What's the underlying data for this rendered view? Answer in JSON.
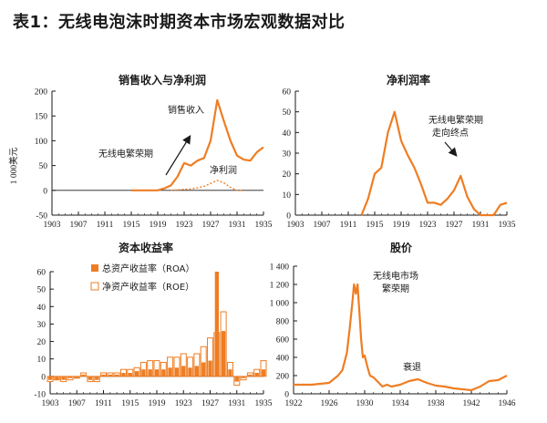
{
  "page": {
    "title": "表1：无线电泡沫时期资本市场宏观数据对比"
  },
  "colors": {
    "orange": "#ee7d23",
    "axis": "#1a1a1a"
  },
  "chart_data": [
    {
      "id": "sales",
      "type": "line",
      "title": "销售收入与净利润",
      "ylabel": "1 000美元",
      "xlim": [
        1903,
        1935
      ],
      "ylim": [
        -50,
        200
      ],
      "xticks": [
        1903,
        1907,
        1911,
        1915,
        1919,
        1923,
        1927,
        1931,
        1935
      ],
      "yticks": [
        -50,
        0,
        50,
        100,
        150,
        200
      ],
      "series": [
        {
          "name": "销售收入",
          "style": "solid",
          "x": [
            1915,
            1919,
            1920,
            1921,
            1922,
            1923,
            1924,
            1925,
            1926,
            1927,
            1928,
            1929,
            1930,
            1931,
            1932,
            1933,
            1934,
            1935
          ],
          "y": [
            0,
            0,
            4,
            10,
            28,
            55,
            50,
            60,
            65,
            100,
            182,
            140,
            100,
            70,
            62,
            60,
            77,
            87
          ]
        },
        {
          "name": "净利润",
          "style": "dotted",
          "x": [
            1921,
            1922,
            1923,
            1924,
            1925,
            1926,
            1927,
            1928,
            1929,
            1930,
            1931,
            1932
          ],
          "y": [
            0,
            1,
            2,
            3,
            5,
            8,
            14,
            20,
            15,
            6,
            0,
            0
          ]
        }
      ],
      "annotations": [
        "销售收入",
        "无线电繁荣期",
        "净利润"
      ]
    },
    {
      "id": "margin",
      "type": "line",
      "title": "净利润率",
      "xlim": [
        1903,
        1935
      ],
      "ylim": [
        0,
        60
      ],
      "xticks": [
        1903,
        1907,
        1911,
        1915,
        1919,
        1923,
        1927,
        1931,
        1935
      ],
      "yticks": [
        0,
        10,
        20,
        30,
        40,
        50,
        60
      ],
      "series": [
        {
          "name": "净利润率",
          "x": [
            1913,
            1914,
            1915,
            1916,
            1917,
            1918,
            1919,
            1920,
            1921,
            1922,
            1923,
            1924,
            1925,
            1926,
            1927,
            1928,
            1929,
            1930,
            1931,
            1932,
            1933,
            1934,
            1935
          ],
          "y": [
            0,
            8,
            20,
            23,
            40,
            50,
            36,
            29,
            23,
            15,
            6,
            6,
            5,
            8,
            12,
            19,
            9,
            3,
            0,
            0,
            0,
            5,
            6
          ]
        }
      ],
      "annotations": [
        "无线电繁荣期",
        "走向终点"
      ]
    },
    {
      "id": "roa",
      "type": "bar",
      "title": "资本收益率",
      "xlim": [
        1903,
        1935
      ],
      "ylim": [
        -10,
        60
      ],
      "xticks": [
        1903,
        1907,
        1911,
        1915,
        1919,
        1923,
        1927,
        1931,
        1935
      ],
      "yticks": [
        -10,
        0,
        10,
        20,
        30,
        40,
        50,
        60
      ],
      "years": [
        1903,
        1904,
        1905,
        1906,
        1907,
        1908,
        1909,
        1910,
        1911,
        1912,
        1913,
        1914,
        1915,
        1916,
        1917,
        1918,
        1919,
        1920,
        1921,
        1922,
        1923,
        1924,
        1925,
        1926,
        1927,
        1928,
        1929,
        1930,
        1931,
        1932,
        1933,
        1934,
        1935
      ],
      "series": [
        {
          "name": "总资产收益率（ROA）",
          "fill": "solid",
          "values": [
            -2,
            -2,
            -2,
            -1,
            -1,
            1,
            -2,
            -2,
            1,
            1,
            1,
            2,
            2,
            3,
            4,
            4,
            4,
            4,
            5,
            5,
            6,
            5,
            6,
            8,
            9,
            60,
            26,
            4,
            -3,
            -1,
            1,
            2,
            4
          ]
        },
        {
          "name": "净资产收益率（ROE）",
          "fill": "hollow",
          "values": [
            -3,
            -2,
            -3,
            -2,
            -1,
            2,
            -3,
            -3,
            2,
            2,
            2,
            4,
            4,
            5,
            8,
            9,
            9,
            8,
            11,
            11,
            13,
            11,
            13,
            17,
            22,
            25,
            37,
            8,
            -5,
            -2,
            2,
            4,
            9
          ]
        }
      ]
    },
    {
      "id": "price",
      "type": "line",
      "title": "股价",
      "xlim": [
        1922,
        1946
      ],
      "ylim": [
        0,
        1400
      ],
      "xticks": [
        1922,
        1926,
        1930,
        1934,
        1938,
        1942,
        1946
      ],
      "yticks": [
        0,
        200,
        400,
        600,
        800,
        1000,
        1200,
        1400
      ],
      "series": [
        {
          "name": "股价",
          "x": [
            1922,
            1924,
            1925,
            1926,
            1927,
            1927.5,
            1928,
            1928.3,
            1928.6,
            1928.8,
            1929.0,
            1929.2,
            1929.4,
            1929.6,
            1929.8,
            1930.0,
            1930.3,
            1930.6,
            1931,
            1931.5,
            1932,
            1932.5,
            1933,
            1934,
            1935,
            1936,
            1937,
            1938,
            1939,
            1940,
            1941,
            1942,
            1943,
            1944,
            1945,
            1946
          ],
          "y": [
            100,
            100,
            110,
            120,
            200,
            260,
            450,
            700,
            980,
            1200,
            1100,
            1200,
            900,
            600,
            400,
            420,
            300,
            200,
            180,
            130,
            80,
            100,
            80,
            100,
            140,
            160,
            120,
            90,
            80,
            60,
            50,
            40,
            80,
            140,
            150,
            200
          ]
        }
      ],
      "annotations": [
        "无线电市场",
        "繁荣期",
        "衰退"
      ]
    }
  ]
}
